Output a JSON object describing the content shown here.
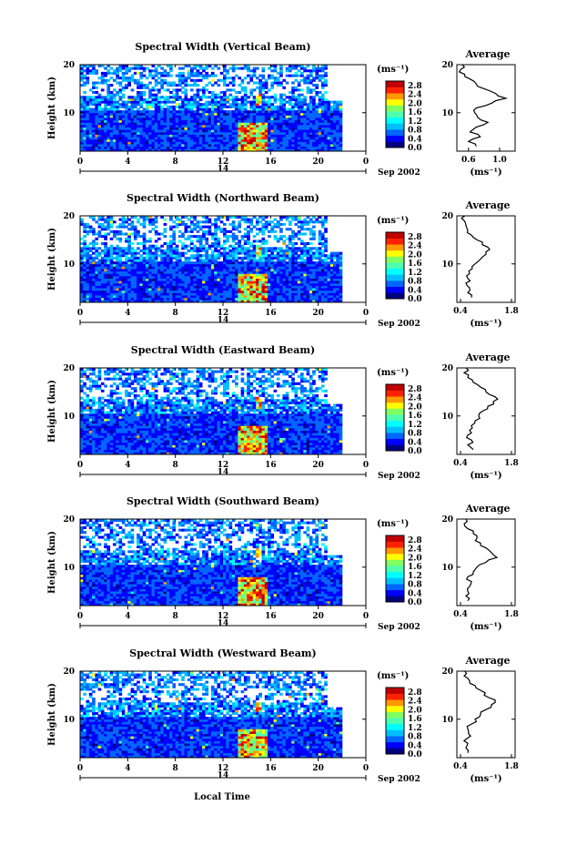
{
  "figure": {
    "xlabel": "Local Time",
    "date_label": "Sep 2002",
    "day_label": "14"
  },
  "colors": {
    "scale": [
      "#000080",
      "#0000ff",
      "#0066ff",
      "#00bfff",
      "#00ffff",
      "#4dffb0",
      "#80ff60",
      "#ffff00",
      "#ff9900",
      "#ff2200",
      "#c00000"
    ],
    "background": "#ffffff",
    "line": "#000000"
  },
  "chart_data": [
    {
      "type": "heatmap",
      "title": "Spectral Width (Vertical Beam)",
      "ylabel": "Height (km)",
      "xlim": [
        0,
        24
      ],
      "ylim": [
        2,
        20
      ],
      "x_ticks": [
        "0",
        "4",
        "8",
        "12",
        "16",
        "20",
        "0"
      ],
      "y_ticks": [
        "20",
        "10"
      ],
      "colorbar": {
        "label": "(ms⁻¹)",
        "ticks": [
          "2.8",
          "2.4",
          "2.0",
          "1.6",
          "1.2",
          "0.8",
          "0.4",
          "0.0"
        ],
        "range": [
          0.0,
          3.0
        ]
      },
      "profile": {
        "title": "Average",
        "x_ticks": [
          "0.6",
          "1.0"
        ],
        "xlim": [
          0.45,
          1.2
        ],
        "xlabel": "(ms⁻¹)",
        "y_ticks": [
          "20",
          "10"
        ],
        "height": [
          3,
          4,
          5,
          6,
          7,
          8,
          9,
          10,
          11,
          12,
          13,
          14,
          15,
          16,
          17,
          18,
          19,
          20
        ],
        "value": [
          0.7,
          0.6,
          0.75,
          0.62,
          0.7,
          0.85,
          0.72,
          0.68,
          0.7,
          0.9,
          1.08,
          0.95,
          0.8,
          0.7,
          0.62,
          0.55,
          0.5,
          0.52
        ]
      }
    },
    {
      "type": "heatmap",
      "title": "Spectral Width (Northward Beam)",
      "ylabel": "Height (km)",
      "xlim": [
        0,
        24
      ],
      "ylim": [
        2,
        20
      ],
      "x_ticks": [
        "0",
        "4",
        "8",
        "12",
        "16",
        "20",
        "0"
      ],
      "y_ticks": [
        "20",
        "10"
      ],
      "colorbar": {
        "label": "(ms⁻¹)",
        "ticks": [
          "2.8",
          "2.4",
          "2.0",
          "1.6",
          "1.2",
          "0.8",
          "0.4",
          "0.0"
        ],
        "range": [
          0.0,
          3.0
        ]
      },
      "profile": {
        "title": "Average",
        "x_ticks": [
          "0.4",
          "1.8"
        ],
        "xlim": [
          0.3,
          1.9
        ],
        "xlabel": "(ms⁻¹)",
        "y_ticks": [
          "20",
          "10"
        ],
        "height": [
          3,
          4,
          5,
          6,
          7,
          8,
          9,
          10,
          11,
          12,
          13,
          14,
          15,
          16,
          17,
          18,
          19,
          20
        ],
        "value": [
          0.7,
          0.6,
          0.65,
          0.55,
          0.6,
          0.65,
          0.72,
          0.8,
          0.95,
          1.1,
          1.2,
          1.0,
          0.85,
          0.7,
          0.6,
          0.55,
          0.5,
          0.52
        ]
      }
    },
    {
      "type": "heatmap",
      "title": "Spectral Width (Eastward Beam)",
      "ylabel": "Height (km)",
      "xlim": [
        0,
        24
      ],
      "ylim": [
        2,
        20
      ],
      "x_ticks": [
        "0",
        "4",
        "8",
        "12",
        "16",
        "20",
        "0"
      ],
      "y_ticks": [
        "20",
        "10"
      ],
      "colorbar": {
        "label": "(ms⁻¹)",
        "ticks": [
          "2.8",
          "2.4",
          "2.0",
          "1.6",
          "1.2",
          "0.8",
          "0.4",
          "0.0"
        ],
        "range": [
          0.0,
          3.0
        ]
      },
      "profile": {
        "title": "Average",
        "x_ticks": [
          "0.4",
          "1.8"
        ],
        "xlim": [
          0.3,
          1.9
        ],
        "xlabel": "(ms⁻¹)",
        "y_ticks": [
          "20",
          "10"
        ],
        "height": [
          3,
          4,
          5,
          6,
          7,
          8,
          9,
          10,
          11,
          12,
          13,
          14,
          15,
          16,
          17,
          18,
          19,
          20
        ],
        "value": [
          0.75,
          0.6,
          0.7,
          0.6,
          0.65,
          0.7,
          0.8,
          0.9,
          1.0,
          1.15,
          1.3,
          1.35,
          1.1,
          0.95,
          0.75,
          0.6,
          0.5,
          0.55
        ]
      }
    },
    {
      "type": "heatmap",
      "title": "Spectral Width (Southward Beam)",
      "ylabel": "Height (km)",
      "xlim": [
        0,
        24
      ],
      "ylim": [
        2,
        20
      ],
      "x_ticks": [
        "0",
        "4",
        "8",
        "12",
        "16",
        "20",
        "0"
      ],
      "y_ticks": [
        "20",
        "10"
      ],
      "colorbar": {
        "label": "(ms⁻¹)",
        "ticks": [
          "2.8",
          "2.4",
          "2.0",
          "1.6",
          "1.2",
          "0.8",
          "0.4",
          "0.0"
        ],
        "range": [
          0.0,
          3.0
        ]
      },
      "profile": {
        "title": "Average",
        "x_ticks": [
          "0.4",
          "1.8"
        ],
        "xlim": [
          0.3,
          1.9
        ],
        "xlabel": "(ms⁻¹)",
        "y_ticks": [
          "20",
          "10"
        ],
        "height": [
          3,
          4,
          5,
          6,
          7,
          8,
          9,
          10,
          11,
          12,
          13,
          14,
          15,
          16,
          17,
          18,
          19,
          20
        ],
        "value": [
          0.6,
          0.55,
          0.6,
          0.65,
          0.7,
          0.6,
          0.75,
          0.85,
          1.1,
          1.4,
          1.25,
          1.1,
          0.95,
          0.85,
          0.75,
          0.6,
          0.5,
          0.55
        ]
      }
    },
    {
      "type": "heatmap",
      "title": "Spectral Width (Westward Beam)",
      "ylabel": "Height (km)",
      "xlim": [
        0,
        24
      ],
      "ylim": [
        2,
        20
      ],
      "x_ticks": [
        "0",
        "4",
        "8",
        "12",
        "16",
        "20",
        "0"
      ],
      "y_ticks": [
        "20",
        "10"
      ],
      "colorbar": {
        "label": "(ms⁻¹)",
        "ticks": [
          "2.8",
          "2.4",
          "2.0",
          "1.6",
          "1.2",
          "0.8",
          "0.4",
          "0.0"
        ],
        "range": [
          0.0,
          3.0
        ]
      },
      "profile": {
        "title": "Average",
        "x_ticks": [
          "0.4",
          "1.8"
        ],
        "xlim": [
          0.3,
          1.9
        ],
        "xlabel": "(ms⁻¹)",
        "y_ticks": [
          "20",
          "10"
        ],
        "height": [
          3,
          4,
          5,
          6,
          7,
          8,
          9,
          10,
          11,
          12,
          13,
          14,
          15,
          16,
          17,
          18,
          19,
          20
        ],
        "value": [
          0.6,
          0.55,
          0.6,
          0.58,
          0.62,
          0.6,
          0.7,
          0.8,
          0.95,
          1.1,
          1.25,
          1.35,
          1.05,
          0.95,
          0.8,
          0.65,
          0.5,
          0.52
        ]
      }
    }
  ]
}
